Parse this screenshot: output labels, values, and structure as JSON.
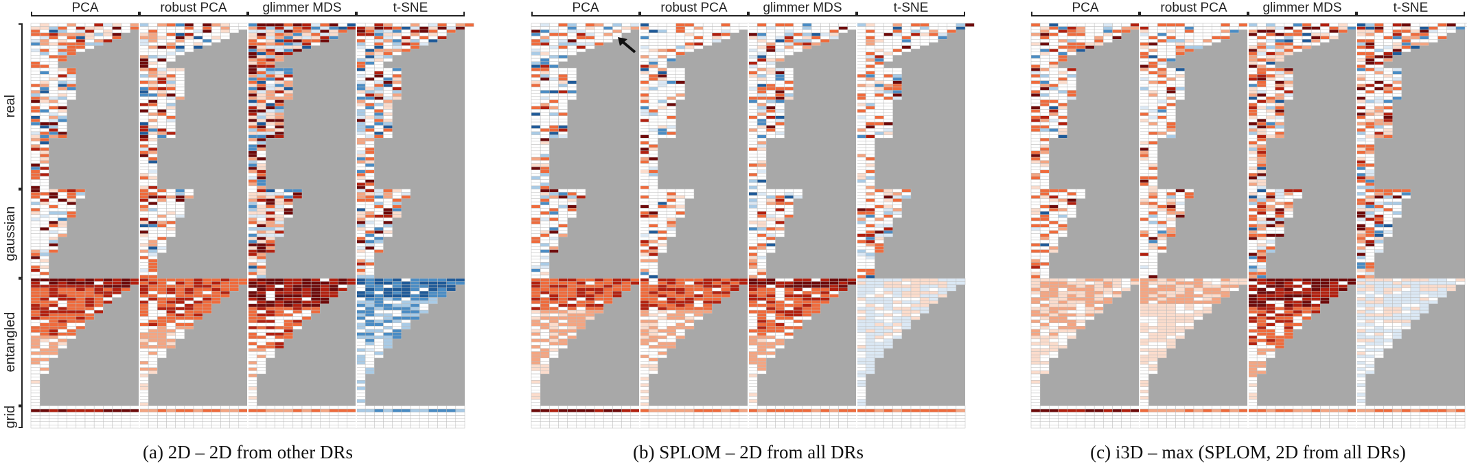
{
  "chart_data": {
    "type": "heatmap",
    "title": "",
    "method_labels": [
      "PCA",
      "robust PCA",
      "glimmer MDS",
      "t-SNE"
    ],
    "group_labels": [
      "real",
      "gaussian",
      "entangled",
      "grid"
    ],
    "cells_per_method": 12,
    "group_row_counts": [
      52,
      28,
      40,
      7
    ],
    "background_color": "#a8a8a8",
    "cell_border_color": "#bdbdbd",
    "diverging_colors": {
      "strong_negative": "#1f5a98",
      "negative": "#4a8cc4",
      "weak_negative": "#a9cbe6",
      "faint_negative": "#dbe8f4",
      "neutral": "#ffffff",
      "faint_positive": "#fbdccc",
      "weak_positive": "#f4a582",
      "positive": "#ef6b3c",
      "strong_positive": "#b2200f",
      "max_positive": "#6e0a0a"
    },
    "panels": [
      {
        "caption": "(a)  2D – 2D from other DRs",
        "intensity": [
          0.55,
          0.45,
          0.95,
          0.62
        ],
        "blue_bias": [
          0.3,
          0.25,
          0.3,
          0.35
        ],
        "entangled_bias": [
          0.8,
          0.7,
          0.95,
          -0.85
        ],
        "grid_bias": [
          0.85,
          0.55,
          0.7,
          0.2
        ]
      },
      {
        "caption": "(b)  SPLOM – 2D from all DRs",
        "intensity": [
          0.35,
          0.3,
          0.4,
          0.3
        ],
        "blue_bias": [
          0.45,
          0.3,
          0.35,
          0.35
        ],
        "entangled_bias": [
          0.6,
          0.6,
          0.8,
          0.05
        ],
        "grid_bias": [
          0.9,
          0.6,
          0.6,
          0.45
        ]
      },
      {
        "caption": "(c)  i3D – max (SPLOM, 2D from all DRs)",
        "intensity": [
          0.4,
          0.35,
          0.6,
          0.55
        ],
        "blue_bias": [
          0.2,
          0.2,
          0.25,
          0.25
        ],
        "entangled_bias": [
          0.35,
          0.25,
          0.95,
          0.05
        ],
        "grid_bias": [
          0.9,
          0.7,
          0.7,
          0.6
        ]
      }
    ]
  }
}
